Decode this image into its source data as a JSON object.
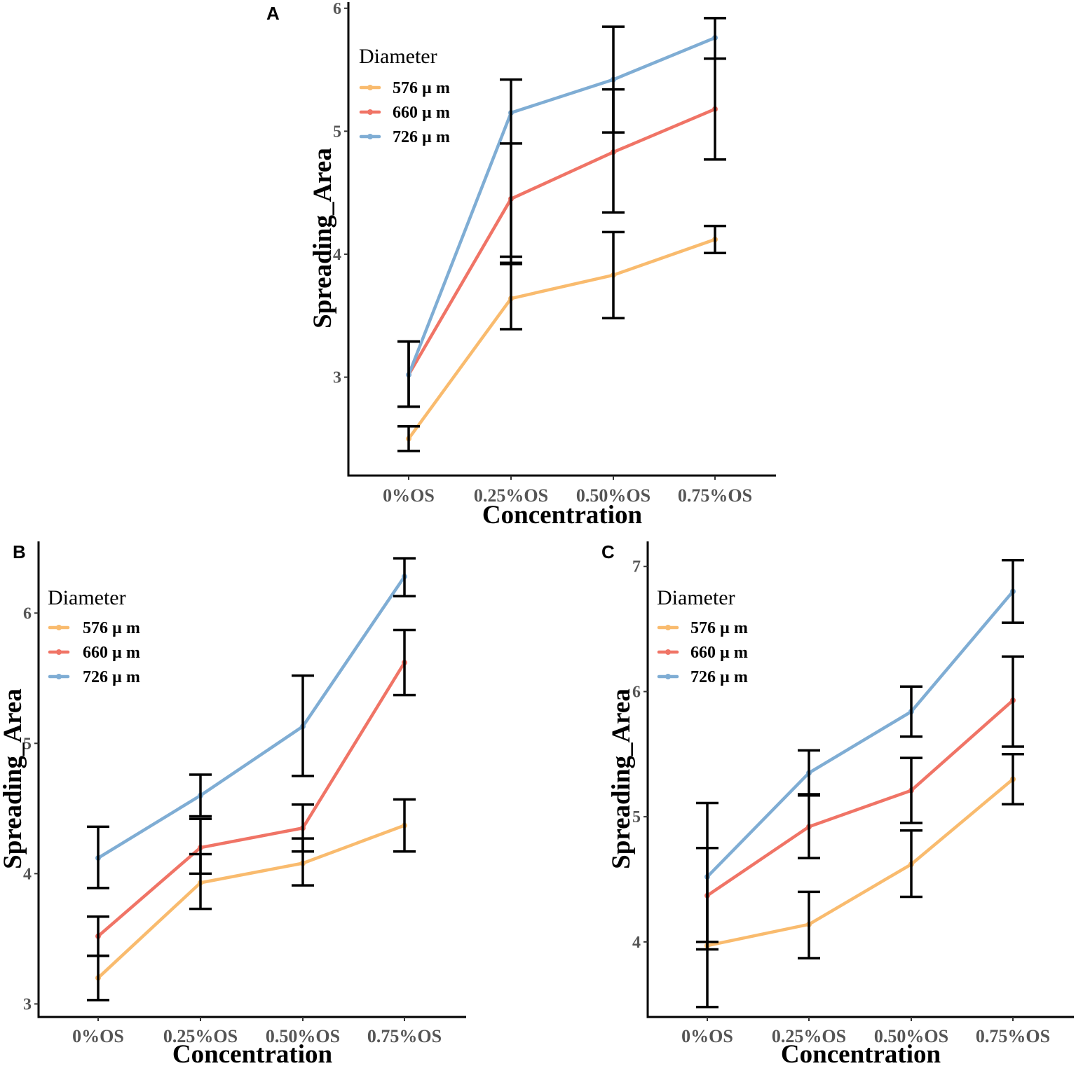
{
  "chart_data": [
    {
      "panel": "A",
      "type": "line",
      "xlabel": "Concentration",
      "ylabel": "Spreading_Area",
      "categories": [
        "0%OS",
        "0.25%OS",
        "0.50%OS",
        "0.75%OS"
      ],
      "yticks": [
        3,
        4,
        5,
        6
      ],
      "ylim": [
        2.2,
        6.05
      ],
      "legend": {
        "title": "Diameter",
        "position": "top-left"
      },
      "series": [
        {
          "name": "576 µ m",
          "color": "#F9BB6E",
          "values": [
            2.5,
            3.64,
            3.83,
            4.12
          ],
          "err_low": [
            2.4,
            3.39,
            3.48,
            4.01
          ],
          "err_high": [
            2.6,
            3.93,
            4.18,
            4.23
          ]
        },
        {
          "name": "660 µ m",
          "color": "#F07466",
          "values": [
            3.02,
            4.45,
            4.83,
            5.18
          ],
          "err_low": [
            2.76,
            3.98,
            4.34,
            4.77
          ],
          "err_high": [
            3.29,
            4.9,
            5.34,
            5.59
          ]
        },
        {
          "name": "726 µ m",
          "color": "#7FADD4",
          "values": [
            3.02,
            5.15,
            5.42,
            5.76
          ],
          "err_low": [
            2.76,
            3.92,
            4.99,
            5.59
          ],
          "err_high": [
            3.29,
            5.42,
            5.85,
            5.92
          ]
        }
      ]
    },
    {
      "panel": "B",
      "type": "line",
      "xlabel": "Concentration",
      "ylabel": "Spreading_Area",
      "categories": [
        "0%OS",
        "0.25%OS",
        "0.50%OS",
        "0.75%OS"
      ],
      "yticks": [
        3,
        4,
        5,
        6
      ],
      "ylim": [
        2.9,
        6.55
      ],
      "legend": {
        "title": "Diameter",
        "position": "top-left"
      },
      "series": [
        {
          "name": "576 µ m",
          "color": "#F9BB6E",
          "values": [
            3.2,
            3.93,
            4.08,
            4.37
          ],
          "err_low": [
            3.03,
            3.73,
            3.91,
            4.17
          ],
          "err_high": [
            3.37,
            4.15,
            4.27,
            4.57
          ]
        },
        {
          "name": "660 µ m",
          "color": "#F07466",
          "values": [
            3.52,
            4.2,
            4.35,
            5.62
          ],
          "err_low": [
            3.37,
            4.0,
            4.17,
            5.37
          ],
          "err_high": [
            3.67,
            4.42,
            4.53,
            5.87
          ]
        },
        {
          "name": "726 µ m",
          "color": "#7FADD4",
          "values": [
            4.12,
            4.6,
            5.13,
            6.28
          ],
          "err_low": [
            3.89,
            4.44,
            4.75,
            6.13
          ],
          "err_high": [
            4.36,
            4.76,
            5.52,
            6.42
          ]
        }
      ]
    },
    {
      "panel": "C",
      "type": "line",
      "xlabel": "Concentration",
      "ylabel": "Spreading_Area",
      "categories": [
        "0%OS",
        "0.25%OS",
        "0.50%OS",
        "0.75%OS"
      ],
      "yticks": [
        4,
        5,
        6,
        7
      ],
      "ylim": [
        3.4,
        7.2
      ],
      "legend": {
        "title": "Diameter",
        "position": "top-left"
      },
      "series": [
        {
          "name": "576 µ m",
          "color": "#F9BB6E",
          "values": [
            3.97,
            4.14,
            4.62,
            5.3
          ],
          "err_low": [
            3.94,
            3.87,
            4.36,
            5.1
          ],
          "err_high": [
            4.0,
            4.4,
            4.89,
            5.5
          ]
        },
        {
          "name": "660 µ m",
          "color": "#F07466",
          "values": [
            4.37,
            4.92,
            5.21,
            5.93
          ],
          "err_low": [
            4.0,
            4.67,
            4.95,
            5.56
          ],
          "err_high": [
            4.75,
            5.17,
            5.47,
            6.28
          ]
        },
        {
          "name": "726 µ m",
          "color": "#7FADD4",
          "values": [
            4.52,
            5.35,
            5.84,
            6.8
          ],
          "err_low": [
            3.48,
            5.18,
            5.64,
            6.55
          ],
          "err_high": [
            5.11,
            5.53,
            6.04,
            7.05
          ]
        }
      ]
    }
  ]
}
